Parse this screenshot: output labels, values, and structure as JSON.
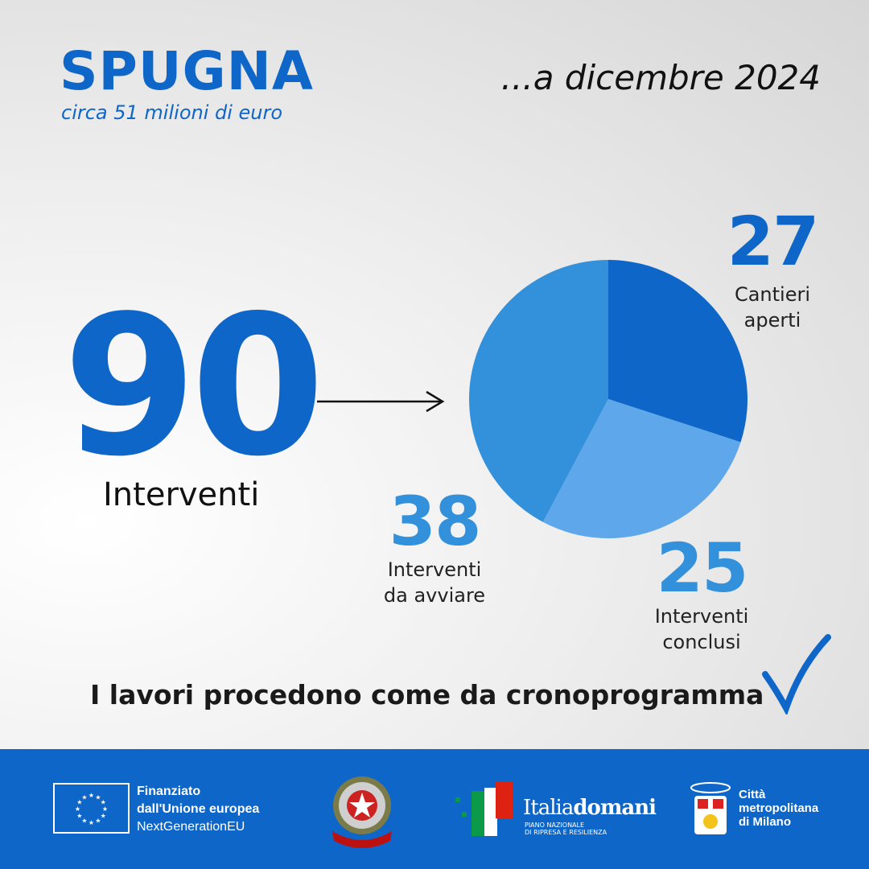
{
  "header": {
    "title": "SPUGNA",
    "subtitle": "circa 51 milioni di euro",
    "date": "...a  dicembre 2024"
  },
  "total": {
    "value": "90",
    "label": "Interventi"
  },
  "chart_data": {
    "type": "pie",
    "title": "Interventi",
    "total": 90,
    "slices": [
      {
        "value": 27,
        "label_line1": "Cantieri",
        "label_line2": "aperti",
        "color": "#0e66c8",
        "value_text": "27"
      },
      {
        "value": 25,
        "label_line1": "Interventi",
        "label_line2": "conclusi",
        "color": "#5ea7ea",
        "value_text": "25"
      },
      {
        "value": 38,
        "label_line1": "Interventi",
        "label_line2": "da avviare",
        "color": "#3391dc",
        "value_text": "38"
      }
    ]
  },
  "note": "I lavori procedono come da cronoprogramma",
  "footer": {
    "eu": {
      "line1": "Finanziato",
      "line2": "dall'Unione europea",
      "line3": "NextGenerationEU"
    },
    "emblem": "REPVBBLICA ITALIANA",
    "italiadomani": {
      "name_a": "Italia",
      "name_b": "domani",
      "sub1": "PIANO NAZIONALE",
      "sub2": "DI RIPRESA E RESILIENZA"
    },
    "milano": {
      "line1": "Città",
      "line2": "metropolitana",
      "line3": "di Milano"
    }
  }
}
